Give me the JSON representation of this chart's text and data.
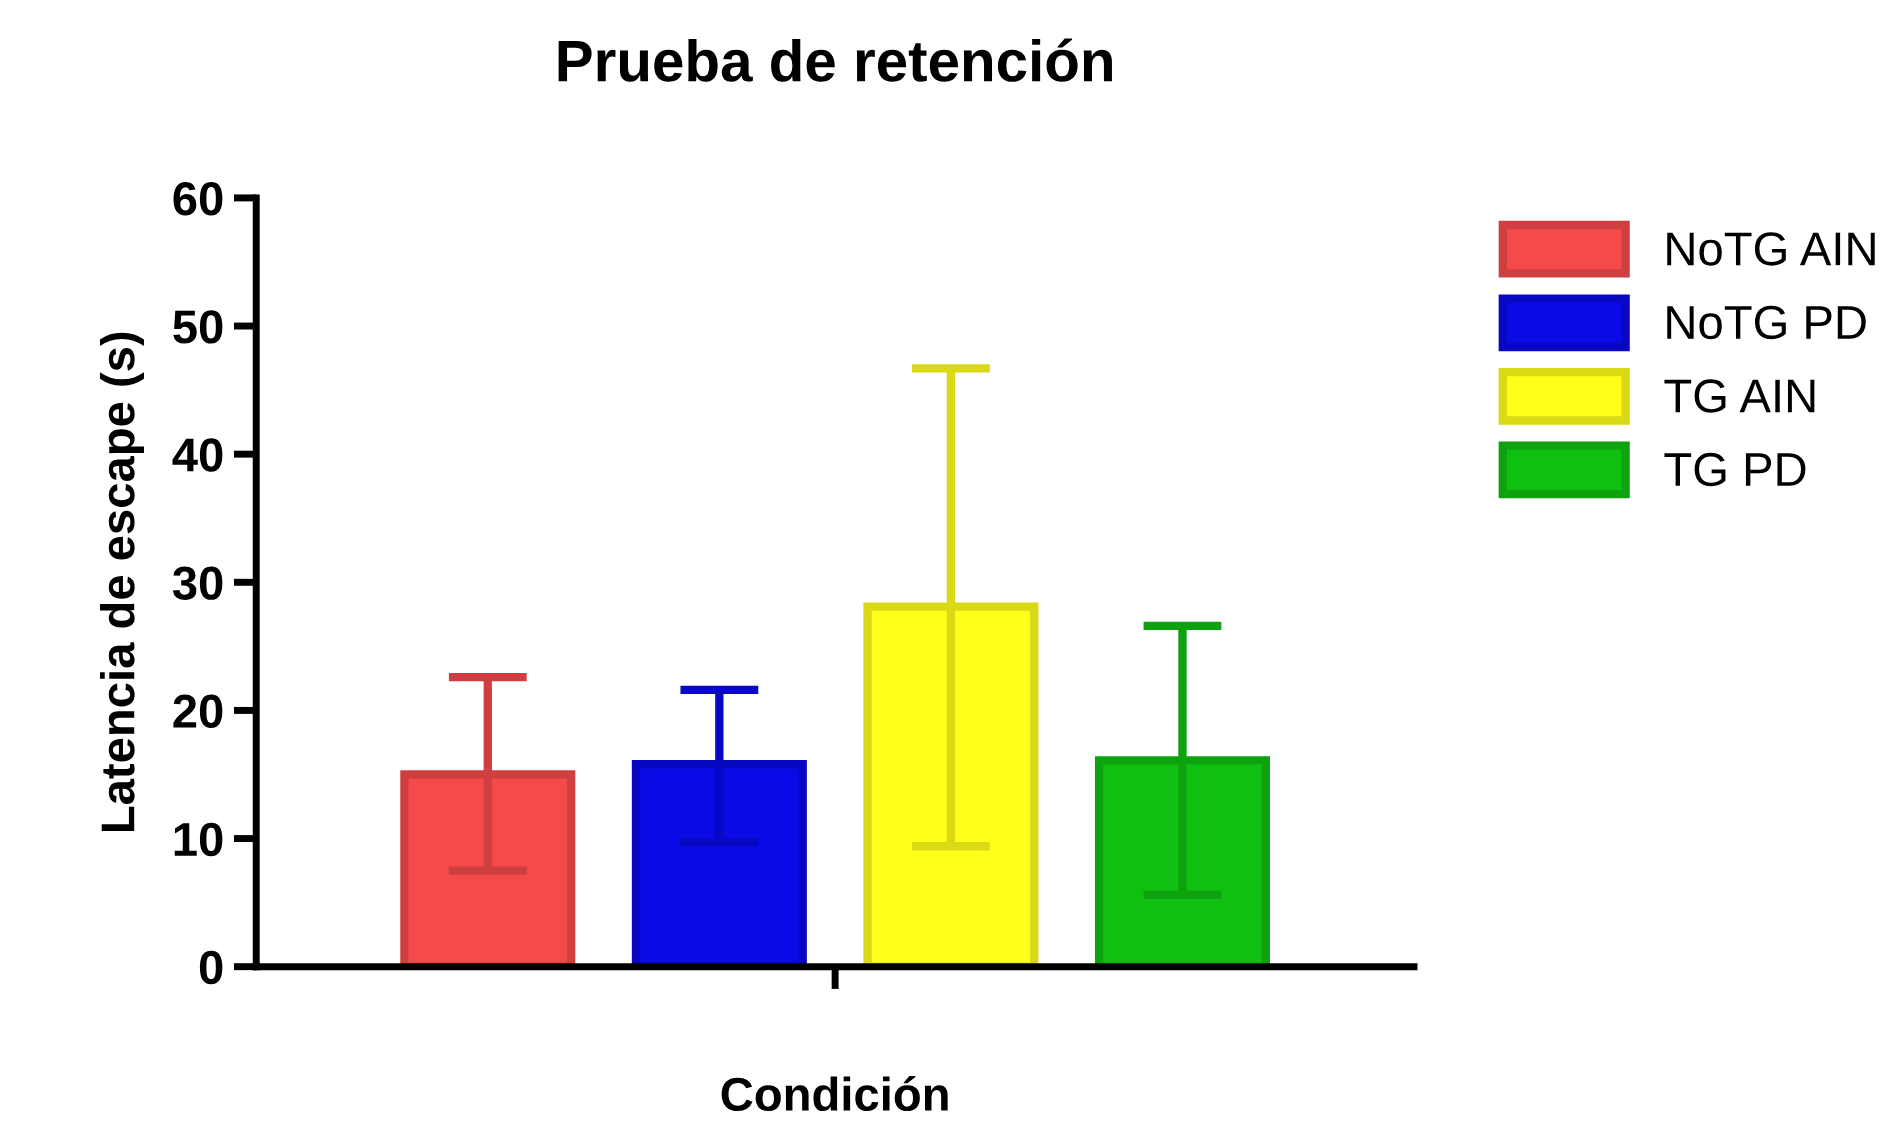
{
  "chart_data": {
    "type": "bar",
    "title": "Prueba de retención",
    "xlabel": "Condición",
    "ylabel": "Latencia de escape (s)",
    "categories": [
      null
    ],
    "series": [
      {
        "name": "NoTG AIN",
        "color": "#f44a4a",
        "values": [
          15.0
        ],
        "errors": [
          [
            7.5,
            22.6
          ]
        ]
      },
      {
        "name": "NoTG PD",
        "color": "#0a0ae6",
        "values": [
          15.8
        ],
        "errors": [
          [
            9.7,
            21.6
          ]
        ]
      },
      {
        "name": "TG AIN",
        "color": "#ffff1a",
        "values": [
          28.1
        ],
        "errors": [
          [
            9.4,
            46.7
          ]
        ]
      },
      {
        "name": "TG PD",
        "color": "#10c010",
        "values": [
          16.1
        ],
        "errors": [
          [
            5.6,
            26.6
          ]
        ]
      }
    ],
    "ylim": [
      0,
      60
    ],
    "yticks": [
      0,
      10,
      20,
      30,
      40,
      50,
      60
    ],
    "grid": false,
    "legend": "top right"
  }
}
